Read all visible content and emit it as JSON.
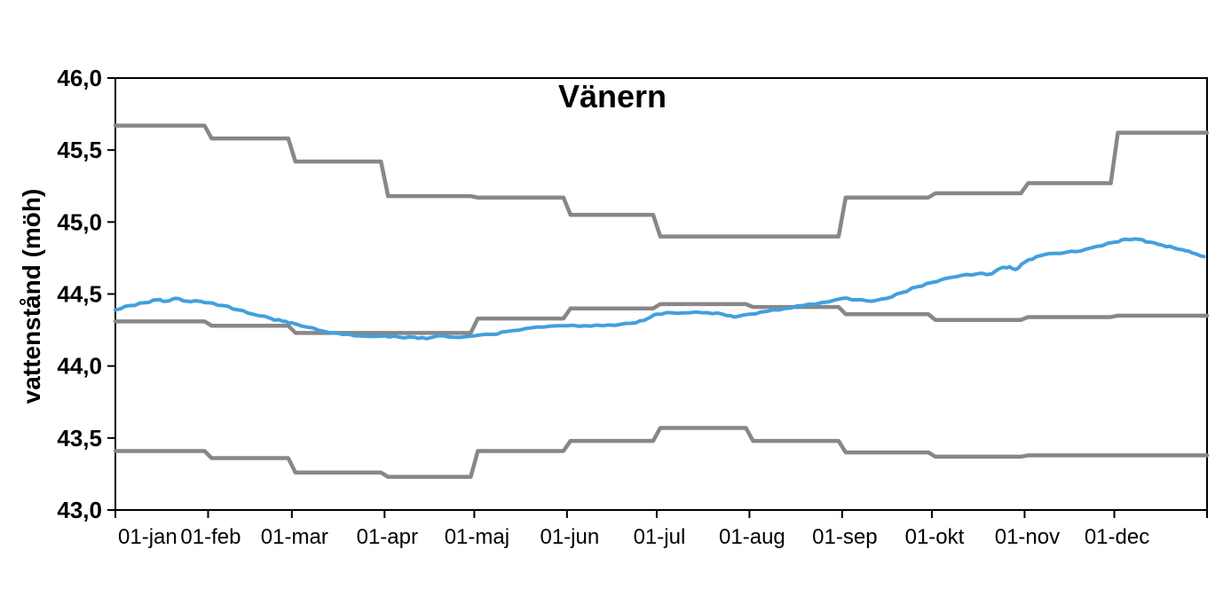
{
  "chart_data": {
    "type": "line",
    "title": "Vänern",
    "ylabel": "vattenstånd (möh)",
    "xlabel": "",
    "ylim": [
      43.0,
      46.0
    ],
    "x_range_days": [
      0,
      365
    ],
    "grid": false,
    "legend": "none",
    "plot_border_color": "#000000",
    "y_tick_values": [
      46.0,
      45.5,
      45.0,
      44.5,
      44.0,
      43.5,
      43.0
    ],
    "y_tick_labels": [
      "46,0",
      "45,5",
      "45,0",
      "44,5",
      "44,0",
      "43,5",
      "43,0"
    ],
    "x_tick_labels": [
      "01-jan",
      "01-feb",
      "01-mar",
      "01-apr",
      "01-maj",
      "01-jun",
      "01-jul",
      "01-aug",
      "01-sep",
      "01-okt",
      "01-nov",
      "01-dec"
    ],
    "x_month_start_days": [
      0,
      31,
      59,
      90,
      120,
      151,
      181,
      212,
      243,
      273,
      304,
      334
    ],
    "series": [
      {
        "id": "upper-limit-step",
        "kind": "monthly-step",
        "color": "#878787",
        "stroke_width": 4.5,
        "monthly_values": [
          45.67,
          45.58,
          45.42,
          45.18,
          45.17,
          45.05,
          44.9,
          44.9,
          45.17,
          45.2,
          45.27,
          45.62
        ]
      },
      {
        "id": "middle-step",
        "kind": "monthly-step",
        "color": "#878787",
        "stroke_width": 4.5,
        "monthly_values": [
          44.31,
          44.28,
          44.23,
          44.23,
          44.33,
          44.4,
          44.43,
          44.41,
          44.36,
          44.32,
          44.34,
          44.35
        ]
      },
      {
        "id": "lower-limit-step",
        "kind": "monthly-step",
        "color": "#878787",
        "stroke_width": 4.5,
        "monthly_values": [
          43.41,
          43.36,
          43.26,
          43.23,
          43.41,
          43.48,
          43.57,
          43.48,
          43.4,
          43.37,
          43.38,
          43.38
        ]
      },
      {
        "id": "water-level",
        "kind": "daily-line",
        "color": "#41a0dc",
        "stroke_width": 4,
        "points_day_value": [
          [
            0,
            44.39
          ],
          [
            5,
            44.42
          ],
          [
            10,
            44.44
          ],
          [
            14,
            44.46
          ],
          [
            17,
            44.45
          ],
          [
            20,
            44.47
          ],
          [
            24,
            44.45
          ],
          [
            28,
            44.45
          ],
          [
            31,
            44.44
          ],
          [
            36,
            44.42
          ],
          [
            41,
            44.39
          ],
          [
            46,
            44.36
          ],
          [
            52,
            44.33
          ],
          [
            56,
            44.31
          ],
          [
            59,
            44.3
          ],
          [
            64,
            44.27
          ],
          [
            70,
            44.24
          ],
          [
            76,
            44.22
          ],
          [
            82,
            44.21
          ],
          [
            90,
            44.21
          ],
          [
            95,
            44.2
          ],
          [
            100,
            44.2
          ],
          [
            104,
            44.19
          ],
          [
            108,
            44.21
          ],
          [
            113,
            44.2
          ],
          [
            120,
            44.21
          ],
          [
            126,
            44.22
          ],
          [
            131,
            44.24
          ],
          [
            137,
            44.26
          ],
          [
            143,
            44.27
          ],
          [
            151,
            44.28
          ],
          [
            157,
            44.28
          ],
          [
            163,
            44.28
          ],
          [
            169,
            44.29
          ],
          [
            174,
            44.3
          ],
          [
            178,
            44.33
          ],
          [
            181,
            44.36
          ],
          [
            186,
            44.37
          ],
          [
            192,
            44.37
          ],
          [
            198,
            44.37
          ],
          [
            203,
            44.36
          ],
          [
            207,
            44.34
          ],
          [
            212,
            44.36
          ],
          [
            218,
            44.38
          ],
          [
            224,
            44.4
          ],
          [
            230,
            44.42
          ],
          [
            236,
            44.44
          ],
          [
            243,
            44.47
          ],
          [
            248,
            44.46
          ],
          [
            253,
            44.45
          ],
          [
            258,
            44.47
          ],
          [
            263,
            44.51
          ],
          [
            268,
            44.55
          ],
          [
            273,
            44.58
          ],
          [
            278,
            44.61
          ],
          [
            283,
            44.63
          ],
          [
            288,
            44.64
          ],
          [
            293,
            44.64
          ],
          [
            296,
            44.68
          ],
          [
            299,
            44.69
          ],
          [
            301,
            44.67
          ],
          [
            304,
            44.72
          ],
          [
            308,
            44.76
          ],
          [
            312,
            44.78
          ],
          [
            318,
            44.79
          ],
          [
            323,
            44.8
          ],
          [
            328,
            44.83
          ],
          [
            334,
            44.86
          ],
          [
            338,
            44.88
          ],
          [
            342,
            44.88
          ],
          [
            346,
            44.86
          ],
          [
            350,
            44.84
          ],
          [
            354,
            44.82
          ],
          [
            358,
            44.8
          ],
          [
            361,
            44.78
          ],
          [
            364,
            44.76
          ]
        ]
      }
    ]
  }
}
